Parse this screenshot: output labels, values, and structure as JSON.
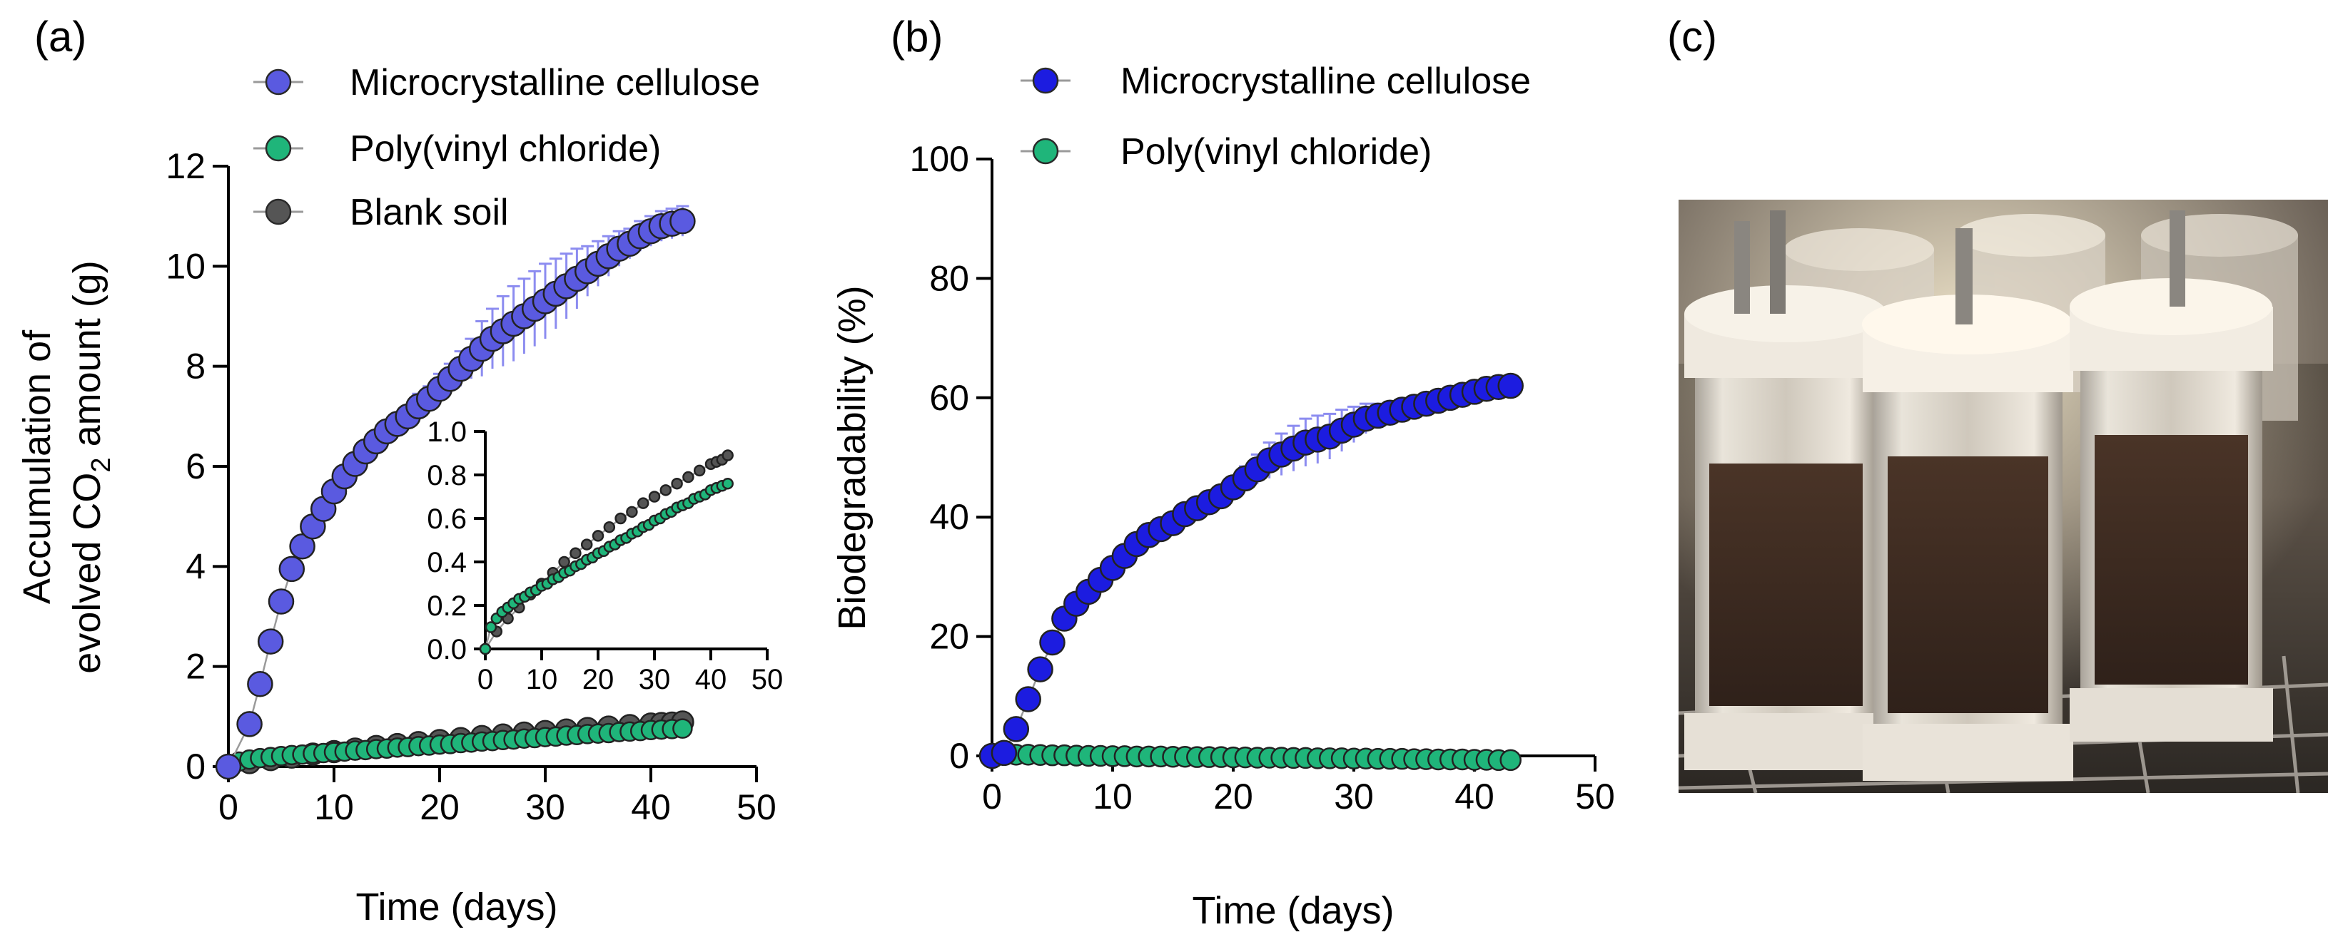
{
  "figure": {
    "panel_labels": [
      "(a)",
      "(b)",
      "(c)"
    ],
    "photo_description_icon": "photo-soil-reactor-columns"
  },
  "colors": {
    "microcrystalline_cellulose": "#5a5ae0",
    "microcrystalline_cellulose_b": "#1c1ce0",
    "poly_vinyl_chloride": "#1fb57a",
    "blank_soil": "#555555",
    "error_bar": "#8c8cf0",
    "connector": "#9a9a9a"
  },
  "chart_data": [
    {
      "panel": "(a)",
      "type": "scatter",
      "title": "",
      "xlabel": "Time (days)",
      "ylabel_line1": "Accumulation of",
      "ylabel_line2_pre": "evolved CO",
      "ylabel_line2_sub": "2",
      "ylabel_line2_post": " amount (g)",
      "xlim": [
        0,
        50
      ],
      "ylim": [
        0,
        12
      ],
      "xticks": [
        "0",
        "10",
        "20",
        "30",
        "40",
        "50"
      ],
      "yticks": [
        "0",
        "2",
        "4",
        "6",
        "8",
        "10",
        "12"
      ],
      "legend_placement": "top-left",
      "series": [
        {
          "name": "Microcrystalline cellulose",
          "color_key": "microcrystalline_cellulose",
          "x": [
            0,
            2,
            3,
            4,
            5,
            6,
            7,
            8,
            9,
            10,
            11,
            12,
            13,
            14,
            15,
            16,
            17,
            18,
            19,
            20,
            21,
            22,
            23,
            24,
            25,
            26,
            27,
            28,
            29,
            30,
            31,
            32,
            33,
            34,
            35,
            36,
            37,
            38,
            39,
            40,
            41,
            42,
            43
          ],
          "y": [
            0,
            0.85,
            1.65,
            2.5,
            3.3,
            3.95,
            4.4,
            4.8,
            5.15,
            5.5,
            5.8,
            6.05,
            6.3,
            6.5,
            6.7,
            6.85,
            7.0,
            7.2,
            7.35,
            7.55,
            7.75,
            7.95,
            8.15,
            8.35,
            8.55,
            8.7,
            8.85,
            9.0,
            9.15,
            9.3,
            9.45,
            9.6,
            9.75,
            9.9,
            10.05,
            10.2,
            10.35,
            10.45,
            10.6,
            10.7,
            10.8,
            10.85,
            10.9
          ],
          "err": [
            0,
            0.05,
            0.05,
            0.08,
            0.1,
            0.1,
            0.12,
            0.12,
            0.12,
            0.15,
            0.15,
            0.15,
            0.15,
            0.15,
            0.15,
            0.2,
            0.2,
            0.25,
            0.25,
            0.3,
            0.3,
            0.35,
            0.4,
            0.55,
            0.6,
            0.7,
            0.75,
            0.75,
            0.75,
            0.75,
            0.7,
            0.65,
            0.6,
            0.5,
            0.45,
            0.4,
            0.35,
            0.3,
            0.3,
            0.3,
            0.3,
            0.3,
            0.3
          ]
        },
        {
          "name": "Poly(vinyl chloride)",
          "color_key": "poly_vinyl_chloride",
          "x": [
            0,
            1,
            2,
            3,
            4,
            5,
            6,
            7,
            8,
            9,
            10,
            11,
            12,
            13,
            14,
            15,
            16,
            17,
            18,
            19,
            20,
            21,
            22,
            23,
            24,
            25,
            26,
            27,
            28,
            29,
            30,
            31,
            32,
            33,
            34,
            35,
            36,
            37,
            38,
            39,
            40,
            41,
            42,
            43
          ],
          "y": [
            0,
            0.1,
            0.14,
            0.17,
            0.19,
            0.21,
            0.23,
            0.24,
            0.26,
            0.27,
            0.29,
            0.3,
            0.32,
            0.33,
            0.35,
            0.36,
            0.38,
            0.39,
            0.41,
            0.42,
            0.44,
            0.45,
            0.47,
            0.48,
            0.5,
            0.51,
            0.53,
            0.54,
            0.56,
            0.57,
            0.59,
            0.6,
            0.62,
            0.63,
            0.65,
            0.66,
            0.67,
            0.69,
            0.7,
            0.71,
            0.73,
            0.74,
            0.75,
            0.76
          ]
        },
        {
          "name": "Blank soil",
          "color_key": "blank_soil",
          "x": [
            0,
            2,
            4,
            6,
            8,
            10,
            12,
            14,
            16,
            18,
            20,
            22,
            24,
            26,
            28,
            30,
            32,
            34,
            36,
            38,
            40,
            41,
            42,
            43
          ],
          "y": [
            0,
            0.08,
            0.14,
            0.19,
            0.25,
            0.3,
            0.35,
            0.4,
            0.44,
            0.48,
            0.52,
            0.56,
            0.6,
            0.63,
            0.67,
            0.7,
            0.73,
            0.76,
            0.79,
            0.82,
            0.85,
            0.86,
            0.87,
            0.89
          ]
        }
      ],
      "inset": {
        "xlim": [
          0,
          50
        ],
        "ylim": [
          0,
          1.0
        ],
        "xticks": [
          "0",
          "10",
          "20",
          "30",
          "40",
          "50"
        ],
        "yticks": [
          "0.0",
          "0.2",
          "0.4",
          "0.6",
          "0.8",
          "1.0"
        ],
        "series_refs": [
          "Poly(vinyl chloride)",
          "Blank soil"
        ]
      }
    },
    {
      "panel": "(b)",
      "type": "scatter",
      "title": "",
      "xlabel": "Time (days)",
      "ylabel": "Biodegradability (%)",
      "xlim": [
        0,
        50
      ],
      "ylim": [
        0,
        100
      ],
      "xticks": [
        "0",
        "10",
        "20",
        "30",
        "40",
        "50"
      ],
      "yticks": [
        "0",
        "20",
        "40",
        "60",
        "80",
        "100"
      ],
      "legend_placement": "top-left",
      "series": [
        {
          "name": "Microcrystalline cellulose",
          "color_key": "microcrystalline_cellulose_b",
          "x": [
            0,
            1,
            2,
            3,
            4,
            5,
            6,
            7,
            8,
            9,
            10,
            11,
            12,
            13,
            14,
            15,
            16,
            17,
            18,
            19,
            20,
            21,
            22,
            23,
            24,
            25,
            26,
            27,
            28,
            29,
            30,
            31,
            32,
            33,
            34,
            35,
            36,
            37,
            38,
            39,
            40,
            41,
            42,
            43
          ],
          "y": [
            0,
            0.5,
            4.5,
            9.5,
            14.5,
            19,
            23,
            25.5,
            27.5,
            29.5,
            31.5,
            33.5,
            35.5,
            37,
            38,
            39,
            40.5,
            41.5,
            42.5,
            43.5,
            45,
            46.5,
            48,
            49.5,
            50.5,
            51.5,
            52.5,
            53,
            53.5,
            54.5,
            55.5,
            56.5,
            57,
            57.5,
            58,
            58.5,
            59,
            59.5,
            60,
            60.5,
            61,
            61.5,
            61.8,
            62
          ],
          "err": [
            0,
            0,
            0.3,
            0.3,
            0.5,
            0.5,
            0.5,
            0.6,
            0.6,
            0.6,
            0.7,
            0.7,
            0.7,
            0.8,
            0.8,
            0.8,
            0.9,
            1.0,
            1.1,
            1.3,
            1.5,
            2.0,
            2.5,
            3.0,
            3.5,
            3.8,
            4.0,
            4.0,
            3.8,
            3.5,
            3.0,
            2.5,
            2.0,
            1.8,
            1.5,
            1.4,
            1.3,
            1.3,
            1.2,
            1.2,
            1.2,
            1.2,
            1.2,
            1.2
          ]
        },
        {
          "name": "Poly(vinyl chloride)",
          "color_key": "poly_vinyl_chloride",
          "x": [
            0,
            1,
            2,
            3,
            4,
            5,
            6,
            7,
            8,
            9,
            10,
            11,
            12,
            13,
            14,
            15,
            16,
            17,
            18,
            19,
            20,
            21,
            22,
            23,
            24,
            25,
            26,
            27,
            28,
            29,
            30,
            31,
            32,
            33,
            34,
            35,
            36,
            37,
            38,
            39,
            40,
            41,
            42,
            43
          ],
          "y": [
            0,
            0.2,
            0.2,
            0.2,
            0.15,
            0.1,
            0.1,
            0.05,
            0,
            0,
            -0.05,
            -0.05,
            -0.1,
            -0.1,
            -0.1,
            -0.15,
            -0.15,
            -0.2,
            -0.2,
            -0.2,
            -0.25,
            -0.25,
            -0.3,
            -0.3,
            -0.3,
            -0.35,
            -0.35,
            -0.4,
            -0.4,
            -0.4,
            -0.45,
            -0.45,
            -0.5,
            -0.5,
            -0.5,
            -0.55,
            -0.55,
            -0.6,
            -0.6,
            -0.6,
            -0.65,
            -0.65,
            -0.7,
            -0.7
          ]
        }
      ]
    }
  ]
}
